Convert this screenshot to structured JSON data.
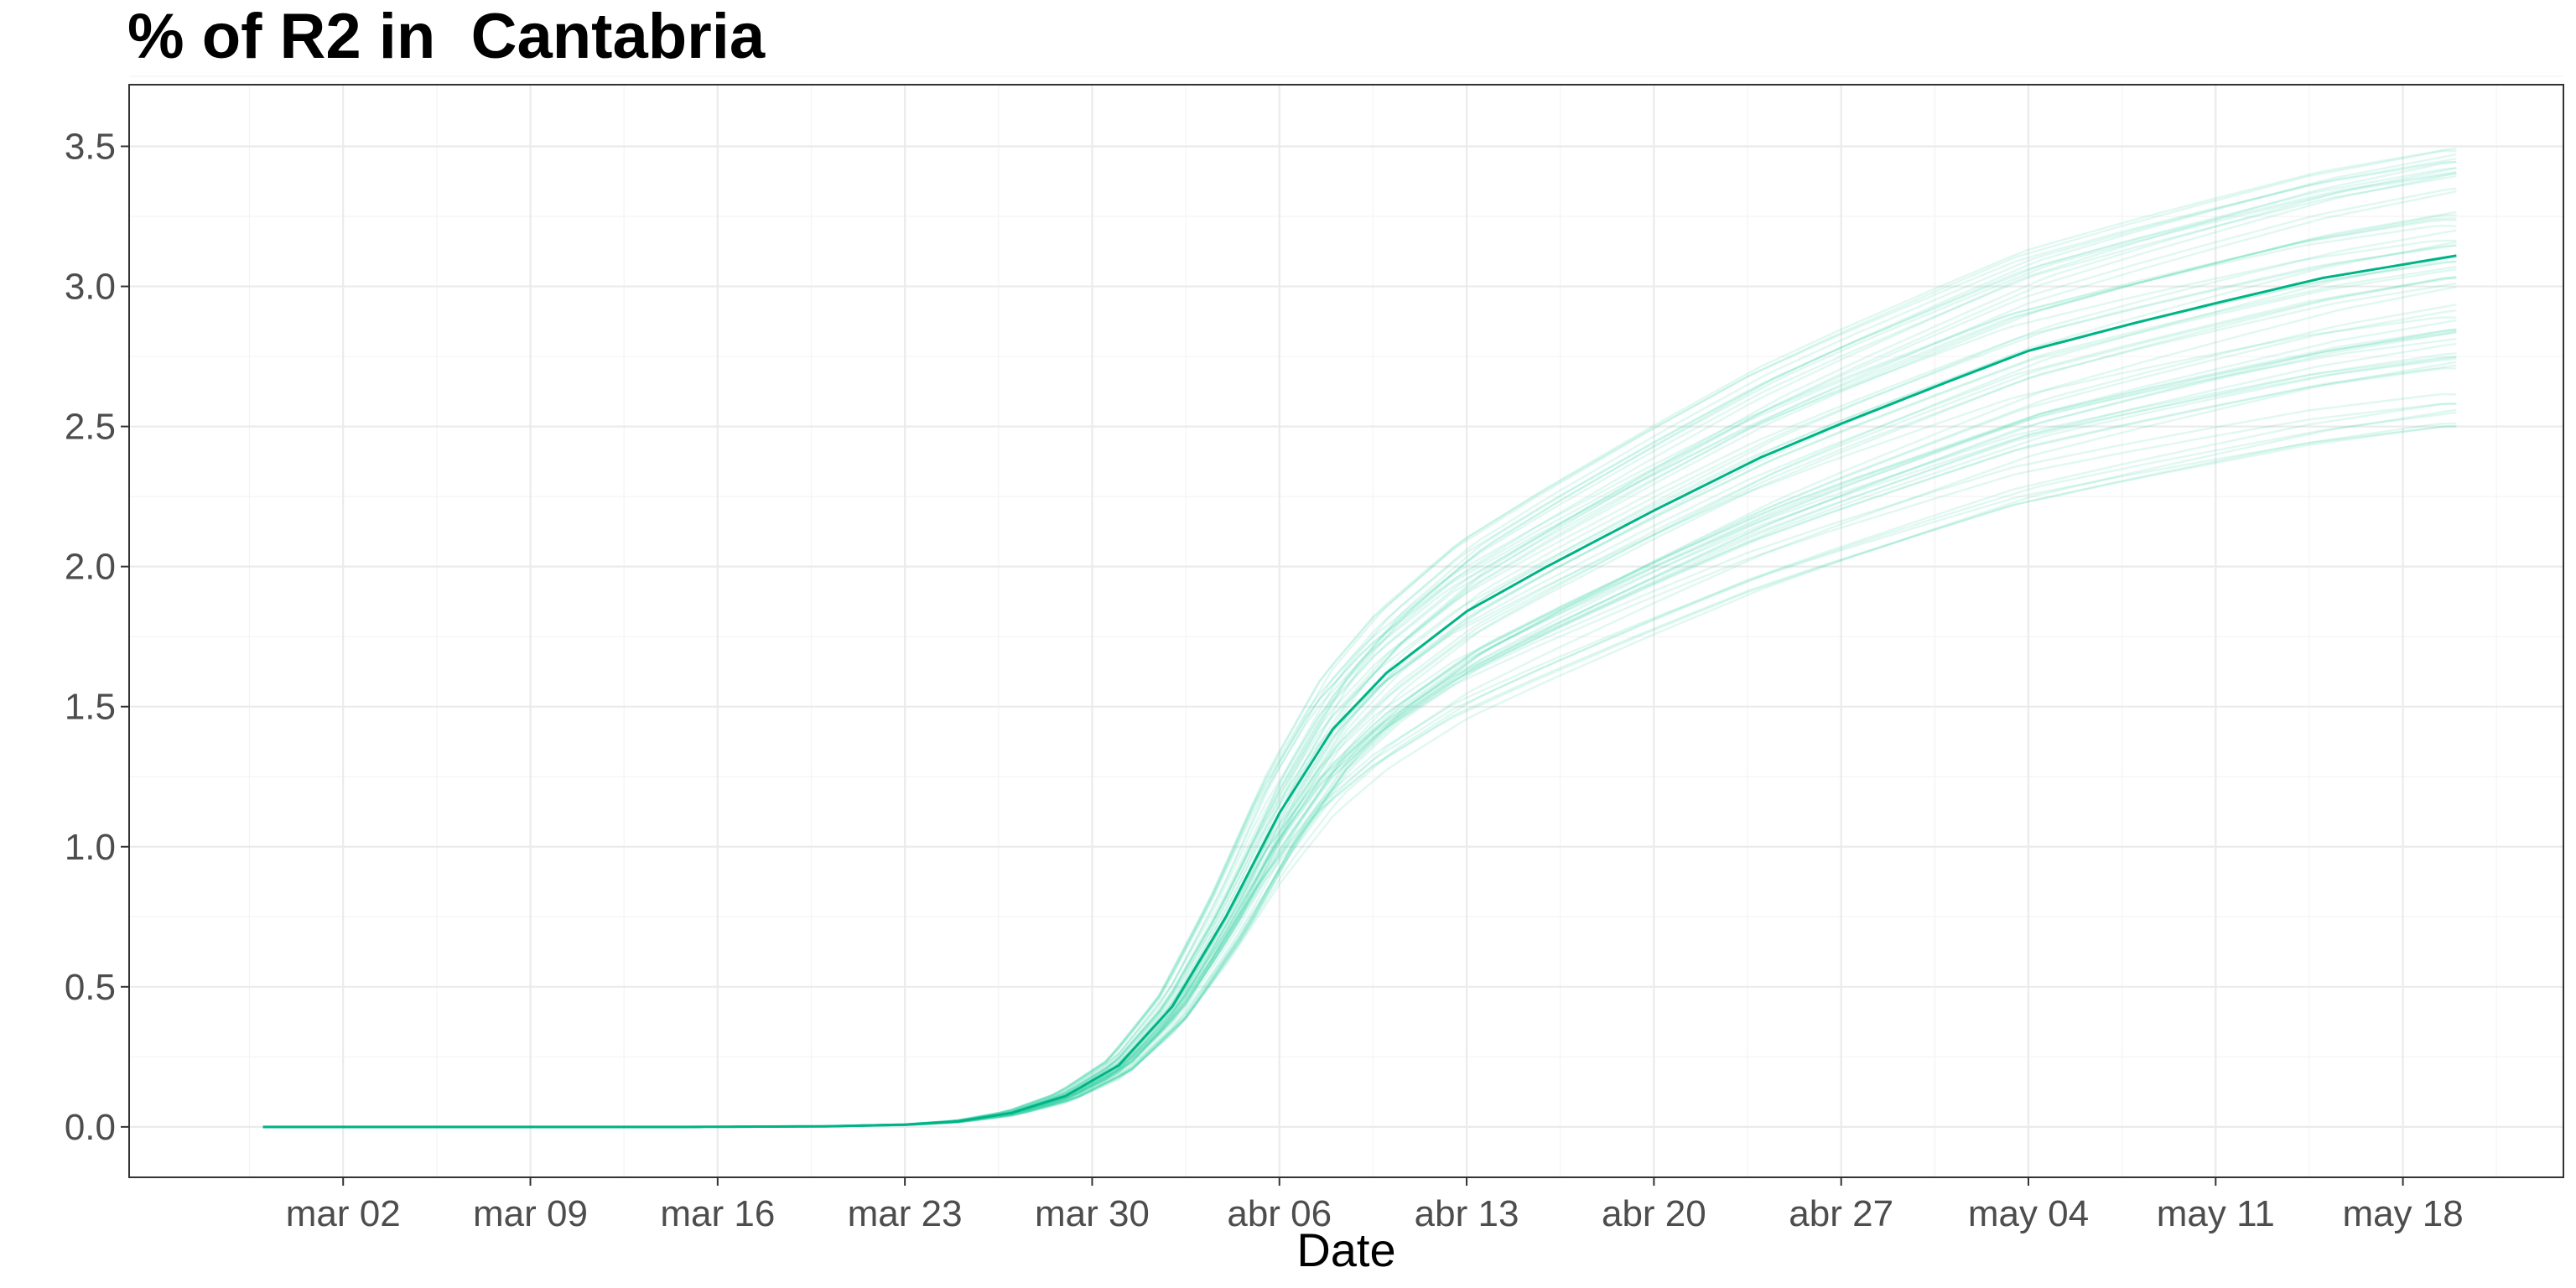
{
  "chart_data": {
    "type": "line",
    "title": "% of R2 in  Cantabria",
    "xlabel": "Date",
    "ylabel": "",
    "x_start": "2020-02-28",
    "x_end": "2020-05-20",
    "xlim": [
      "2020-02-23",
      "2020-05-24"
    ],
    "ylim": [
      -0.18,
      3.72
    ],
    "x_ticks": [
      {
        "date": "2020-03-02",
        "label": "mar 02"
      },
      {
        "date": "2020-03-09",
        "label": "mar 09"
      },
      {
        "date": "2020-03-16",
        "label": "mar 16"
      },
      {
        "date": "2020-03-23",
        "label": "mar 23"
      },
      {
        "date": "2020-03-30",
        "label": "mar 30"
      },
      {
        "date": "2020-04-06",
        "label": "abr 06"
      },
      {
        "date": "2020-04-13",
        "label": "abr 13"
      },
      {
        "date": "2020-04-20",
        "label": "abr 20"
      },
      {
        "date": "2020-04-27",
        "label": "abr 27"
      },
      {
        "date": "2020-05-04",
        "label": "may 04"
      },
      {
        "date": "2020-05-11",
        "label": "may 11"
      },
      {
        "date": "2020-05-18",
        "label": "may 18"
      }
    ],
    "y_ticks": [
      {
        "value": 0.0,
        "label": "0.0"
      },
      {
        "value": 0.5,
        "label": "0.5"
      },
      {
        "value": 1.0,
        "label": "1.0"
      },
      {
        "value": 1.5,
        "label": "1.5"
      },
      {
        "value": 2.0,
        "label": "2.0"
      },
      {
        "value": 2.5,
        "label": "2.5"
      },
      {
        "value": 3.0,
        "label": "3.0"
      },
      {
        "value": 3.5,
        "label": "3.5"
      }
    ],
    "grid": true,
    "legend": "none",
    "colors": {
      "main": "#00b386",
      "ensemble": "#3fd1a8"
    },
    "series": [
      {
        "role": "median",
        "points": [
          [
            "2020-02-28",
            0.0
          ],
          [
            "2020-03-15",
            0.0
          ],
          [
            "2020-03-20",
            0.002
          ],
          [
            "2020-03-23",
            0.008
          ],
          [
            "2020-03-25",
            0.02
          ],
          [
            "2020-03-27",
            0.05
          ],
          [
            "2020-03-29",
            0.11
          ],
          [
            "2020-03-31",
            0.22
          ],
          [
            "2020-04-02",
            0.43
          ],
          [
            "2020-04-04",
            0.75
          ],
          [
            "2020-04-06",
            1.12
          ],
          [
            "2020-04-08",
            1.42
          ],
          [
            "2020-04-10",
            1.62
          ],
          [
            "2020-04-13",
            1.84
          ],
          [
            "2020-04-16",
            2.0
          ],
          [
            "2020-04-20",
            2.2
          ],
          [
            "2020-04-24",
            2.39
          ],
          [
            "2020-04-27",
            2.51
          ],
          [
            "2020-05-01",
            2.66
          ],
          [
            "2020-05-04",
            2.77
          ],
          [
            "2020-05-08",
            2.87
          ],
          [
            "2020-05-11",
            2.94
          ],
          [
            "2020-05-15",
            3.03
          ],
          [
            "2020-05-20",
            3.11
          ]
        ]
      }
    ],
    "ensemble": {
      "count": 60,
      "final_value_min": 2.5,
      "final_value_max": 3.54,
      "apr06_value_min": 0.88,
      "apr06_value_max": 1.28
    }
  }
}
